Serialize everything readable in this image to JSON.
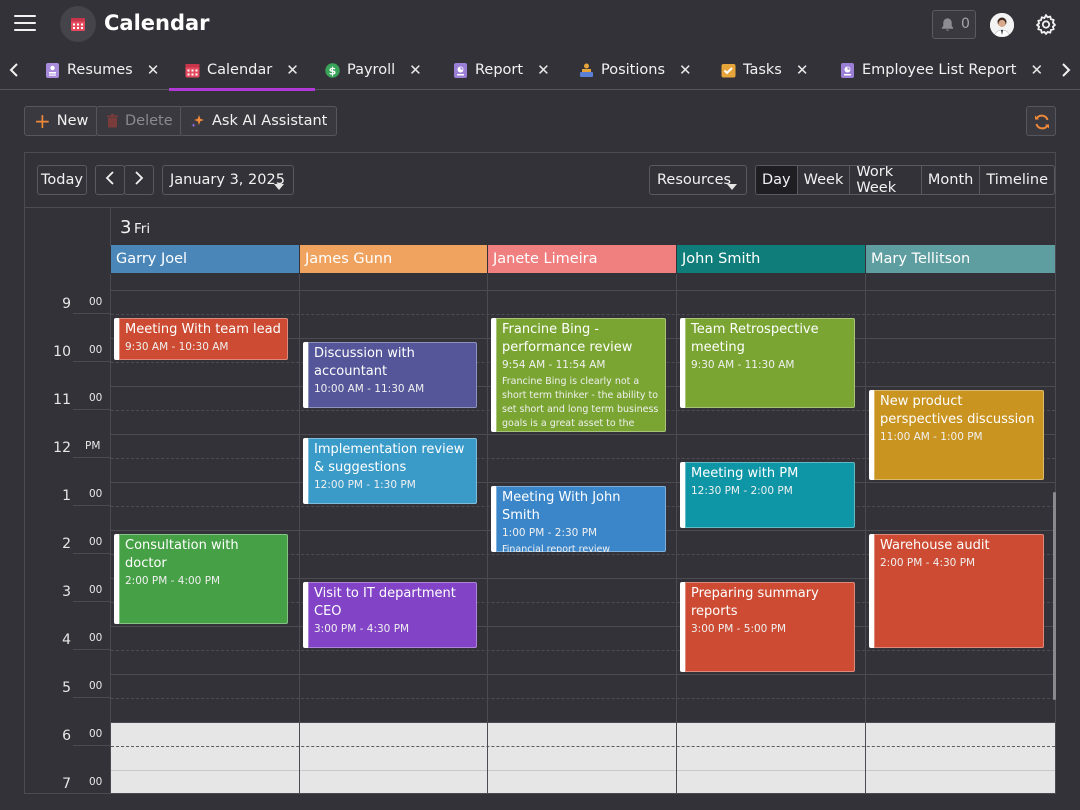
{
  "app": {
    "title": "Calendar",
    "notifications": "0"
  },
  "tabs": [
    {
      "label": "Resumes",
      "icon": "resume-icon",
      "color": "#b49be0"
    },
    {
      "label": "Calendar",
      "icon": "calendar-icon",
      "color": "#e35a5a"
    },
    {
      "label": "Payroll",
      "icon": "payroll-icon",
      "color": "#3aa35a"
    },
    {
      "label": "Report",
      "icon": "report-icon",
      "color": "#9b7fd6"
    },
    {
      "label": "Positions",
      "icon": "positions-icon",
      "color": "#e5a53b"
    },
    {
      "label": "Tasks",
      "icon": "tasks-icon",
      "color": "#e5a53b"
    },
    {
      "label": "Employee List Report",
      "icon": "report-icon",
      "color": "#9b7fd6"
    }
  ],
  "toolbar": {
    "new": "New",
    "delete": "Delete",
    "ai": "Ask AI Assistant"
  },
  "scheduler": {
    "today": "Today",
    "date": "January 3, 2025",
    "resources": "Resources",
    "views": [
      "Day",
      "Week",
      "Work Week",
      "Month",
      "Timeline"
    ],
    "active_view": "Day",
    "day_number": "3",
    "day_name": "Fri",
    "resources_list": [
      {
        "name": "Garry Joel",
        "color": "#4a86b8"
      },
      {
        "name": "James Gunn",
        "color": "#f0a35e"
      },
      {
        "name": "Janete Limeira",
        "color": "#f08080"
      },
      {
        "name": "John Smith",
        "color": "#0f7d7a"
      },
      {
        "name": "Mary Tellitson",
        "color": "#5f9ea0"
      }
    ],
    "hours": [
      {
        "h": "9",
        "sub": "00"
      },
      {
        "h": "10",
        "sub": "00"
      },
      {
        "h": "11",
        "sub": "00"
      },
      {
        "h": "12",
        "sub": "PM"
      },
      {
        "h": "1",
        "sub": "00"
      },
      {
        "h": "2",
        "sub": "00"
      },
      {
        "h": "3",
        "sub": "00"
      },
      {
        "h": "4",
        "sub": "00"
      },
      {
        "h": "5",
        "sub": "00"
      },
      {
        "h": "6",
        "sub": "00"
      },
      {
        "h": "7",
        "sub": "00"
      }
    ],
    "appointments": [
      {
        "title": "Meeting With team lead",
        "time": "9:30 AM - 10:30 AM",
        "desc": "",
        "color": "#cc4b32"
      },
      {
        "title": "Consultation with doctor",
        "time": "2:00 PM - 4:00 PM",
        "desc": "",
        "color": "#46a046"
      },
      {
        "title": "Discussion with accountant",
        "time": "10:00 AM - 11:30 AM",
        "desc": "",
        "color": "#55569a"
      },
      {
        "title": "Implementation review & suggestions",
        "time": "12:00 PM - 1:30 PM",
        "desc": "",
        "color": "#3a9bc9"
      },
      {
        "title": "Visit to IT department CEO",
        "time": "3:00 PM - 4:30 PM",
        "desc": "",
        "color": "#8243c7"
      },
      {
        "title": "Francine Bing - performance review",
        "time": "9:54 AM - 11:54 AM",
        "desc": "Francine Bing  is clearly not a short term thinker - the ability to set short and long term business goals is a great asset to the company",
        "color": "#7aa532"
      },
      {
        "title": "Meeting With John Smith",
        "time": "1:00 PM - 2:30 PM",
        "desc": "Financial report review",
        "color": "#3b86c9"
      },
      {
        "title": "Team Retrospective meeting",
        "time": "9:30 AM - 11:30 AM",
        "desc": "",
        "color": "#7aa532"
      },
      {
        "title": "Meeting with PM",
        "time": "12:30 PM - 2:00 PM",
        "desc": "",
        "color": "#0e96a7"
      },
      {
        "title": "Preparing summary reports",
        "time": "3:00 PM - 5:00 PM",
        "desc": "",
        "color": "#cc4b32"
      },
      {
        "title": "New product perspectives discussion",
        "time": "11:00 AM - 1:00 PM",
        "desc": "",
        "color": "#c99420"
      },
      {
        "title": "Warehouse audit",
        "time": "2:00 PM - 4:30 PM",
        "desc": "",
        "color": "#cc4b32"
      }
    ]
  }
}
